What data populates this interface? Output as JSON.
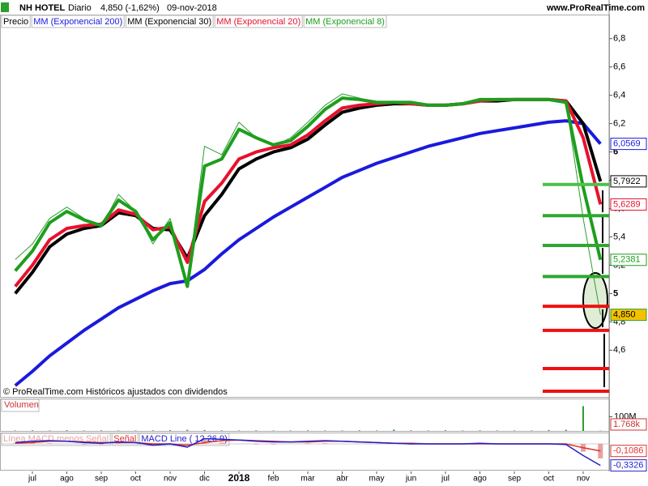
{
  "header": {
    "symbol": "NH HOTEL",
    "period": "Diario",
    "price": "4,850 (-1,62%)",
    "date": "09-nov-2018",
    "site": "www.ProRealTime.com",
    "note": "© ProRealTime.com Históricos ajustados con dividendos"
  },
  "chart_data": [
    {
      "type": "line",
      "categories": [
        null,
        "jul",
        null,
        "ago",
        null,
        "sep",
        null,
        "oct",
        null,
        "nov",
        null,
        "dic",
        null,
        "2018",
        null,
        "feb",
        null,
        "mar",
        null,
        "abr",
        null,
        "may",
        null,
        "jun",
        null,
        "jul",
        null,
        "ago",
        null,
        "sep",
        null,
        "oct",
        null,
        "nov",
        null
      ],
      "ylim": [
        4.27,
        6.97
      ],
      "yticks": [
        {
          "value": 4.6,
          "label": "4,6"
        },
        {
          "value": 4.8,
          "label": "4,8"
        },
        5,
        {
          "value": 5.2,
          "label": "5,2"
        },
        {
          "value": 5.4,
          "label": "5,4"
        },
        {
          "value": 5.6,
          "label": "5,6"
        },
        {
          "value": 5.8,
          "label": "5,8"
        },
        6,
        {
          "value": 6.2,
          "label": "6,2"
        },
        {
          "value": 6.4,
          "label": "6,4"
        },
        {
          "value": 6.6,
          "label": "6,6"
        },
        {
          "value": 6.8,
          "label": "6,8"
        }
      ],
      "series": [
        {
          "name": "Precio",
          "color": "#2e9e2e",
          "width": 1,
          "values": [
            5.24,
            5.35,
            5.53,
            5.61,
            5.53,
            5.47,
            5.7,
            5.58,
            5.35,
            5.53,
            5.07,
            6.04,
            5.98,
            6.21,
            6.1,
            6.04,
            6.1,
            6.21,
            6.33,
            6.41,
            6.38,
            6.35,
            6.35,
            6.35,
            6.33,
            6.33,
            6.34,
            6.37,
            6.37,
            6.37,
            6.37,
            6.37,
            6.35,
            5.53,
            4.85
          ],
          "value_labels": [
            null,
            null,
            null,
            null,
            null,
            null,
            null,
            null,
            null,
            null,
            null,
            null,
            null,
            null,
            null,
            null,
            null,
            null,
            null,
            null,
            null,
            null,
            null,
            null,
            null,
            null,
            null,
            null,
            null,
            null,
            null,
            null,
            null,
            null,
            "4,850"
          ]
        },
        {
          "name": "MM (Exponencial 200)",
          "color": "#1a1adc",
          "width": 4,
          "values": [
            4.35,
            4.45,
            4.56,
            4.65,
            4.74,
            4.82,
            4.9,
            4.96,
            5.02,
            5.07,
            5.09,
            5.17,
            5.28,
            5.38,
            5.46,
            5.54,
            5.61,
            5.68,
            5.75,
            5.82,
            5.87,
            5.92,
            5.96,
            6.0,
            6.04,
            6.07,
            6.1,
            6.13,
            6.15,
            6.17,
            6.19,
            6.21,
            6.22,
            6.2,
            6.0569
          ],
          "value_labels": [
            null,
            null,
            null,
            null,
            null,
            null,
            null,
            null,
            null,
            null,
            null,
            null,
            null,
            null,
            null,
            null,
            null,
            null,
            null,
            null,
            null,
            null,
            null,
            null,
            null,
            null,
            null,
            null,
            null,
            null,
            null,
            null,
            null,
            null,
            "6,0569"
          ]
        },
        {
          "name": "MM (Exponencial 30)",
          "color": "#000000",
          "width": 4,
          "values": [
            5.0,
            5.15,
            5.33,
            5.42,
            5.46,
            5.48,
            5.57,
            5.55,
            5.46,
            5.45,
            5.25,
            5.55,
            5.7,
            5.88,
            5.95,
            6.0,
            6.03,
            6.09,
            6.19,
            6.28,
            6.31,
            6.33,
            6.34,
            6.34,
            6.33,
            6.33,
            6.34,
            6.36,
            6.36,
            6.37,
            6.37,
            6.37,
            6.36,
            6.2,
            5.7922
          ],
          "value_labels": [
            null,
            null,
            null,
            null,
            null,
            null,
            null,
            null,
            null,
            null,
            null,
            null,
            null,
            null,
            null,
            null,
            null,
            null,
            null,
            null,
            null,
            null,
            null,
            null,
            null,
            null,
            null,
            null,
            null,
            null,
            null,
            null,
            null,
            null,
            "5,7922"
          ]
        },
        {
          "name": "MM (Exponencial 20)",
          "color": "#e8112d",
          "width": 4,
          "values": [
            5.05,
            5.2,
            5.38,
            5.46,
            5.48,
            5.49,
            5.59,
            5.56,
            5.45,
            5.47,
            5.22,
            5.65,
            5.78,
            5.95,
            6.0,
            6.03,
            6.05,
            6.12,
            6.22,
            6.31,
            6.33,
            6.34,
            6.35,
            6.34,
            6.33,
            6.33,
            6.34,
            6.36,
            6.37,
            6.37,
            6.37,
            6.37,
            6.36,
            6.1,
            5.6289
          ],
          "value_labels": [
            null,
            null,
            null,
            null,
            null,
            null,
            null,
            null,
            null,
            null,
            null,
            null,
            null,
            null,
            null,
            null,
            null,
            null,
            null,
            null,
            null,
            null,
            null,
            null,
            null,
            null,
            null,
            null,
            null,
            null,
            null,
            null,
            null,
            null,
            "5,6289"
          ]
        },
        {
          "name": "MM (Exponencial 8)",
          "color": "#1e9e1e",
          "width": 4,
          "values": [
            5.16,
            5.3,
            5.5,
            5.58,
            5.52,
            5.48,
            5.66,
            5.58,
            5.38,
            5.5,
            5.05,
            5.9,
            5.95,
            6.16,
            6.1,
            6.05,
            6.08,
            6.18,
            6.3,
            6.38,
            6.37,
            6.35,
            6.35,
            6.35,
            6.33,
            6.33,
            6.34,
            6.37,
            6.37,
            6.37,
            6.37,
            6.37,
            6.35,
            5.75,
            5.2381
          ],
          "value_labels": [
            null,
            null,
            null,
            null,
            null,
            null,
            null,
            null,
            null,
            null,
            null,
            null,
            null,
            null,
            null,
            null,
            null,
            null,
            null,
            null,
            null,
            null,
            null,
            null,
            null,
            null,
            null,
            null,
            null,
            null,
            null,
            null,
            null,
            null,
            "5,2381"
          ]
        }
      ],
      "levels": [
        {
          "value": 5.77,
          "color": "#4cc04c"
        },
        {
          "value": 5.55,
          "color": "#2ea82e"
        },
        {
          "value": 5.34,
          "color": "#2ea82e"
        },
        {
          "value": 5.12,
          "color": "#2ea82e"
        },
        {
          "value": 4.91,
          "color": "#ee1111"
        },
        {
          "value": 4.74,
          "color": "#ee1111"
        },
        {
          "value": 4.47,
          "color": "#ee1111"
        },
        {
          "value": 4.31,
          "color": "#ee1111"
        }
      ]
    },
    {
      "type": "bar",
      "title": "Volumen",
      "color": "#2e9e2e",
      "ylim": [
        0,
        200
      ],
      "yticks": [
        {
          "value": 100,
          "label": "100M"
        }
      ],
      "values": [
        3,
        4,
        3,
        5,
        3,
        4,
        3,
        3,
        4,
        5,
        8,
        6,
        4,
        3,
        4,
        3,
        3,
        4,
        3,
        3,
        4,
        3,
        10,
        4,
        3,
        5,
        3,
        4,
        3,
        3,
        3,
        6,
        8,
        175,
        1.768
      ],
      "value_labels": [
        null,
        null,
        null,
        null,
        null,
        null,
        null,
        null,
        null,
        null,
        null,
        null,
        null,
        null,
        null,
        null,
        null,
        null,
        null,
        null,
        null,
        null,
        null,
        null,
        null,
        null,
        null,
        null,
        null,
        null,
        null,
        null,
        null,
        null,
        "1.768k"
      ]
    },
    {
      "type": "line",
      "ylim": [
        -0.4,
        0.15
      ],
      "series": [
        {
          "name": "Línea MACD menos Señal",
          "color": "#e8a0a0",
          "kind": "bar",
          "values": [
            0.01,
            0.02,
            0.01,
            0,
            -0.01,
            -0.01,
            0.01,
            0,
            -0.02,
            0,
            -0.03,
            0.06,
            0.02,
            0,
            -0.01,
            -0.01,
            0,
            0.01,
            0.01,
            0,
            0,
            0,
            0,
            -0.01,
            0,
            0,
            0,
            0.01,
            0,
            0,
            0,
            0,
            -0.01,
            -0.12,
            -0.224
          ]
        },
        {
          "name": "Señal",
          "color": "#e03030",
          "values": [
            0.01,
            0.02,
            0.04,
            0.04,
            0.03,
            0.02,
            0.02,
            0.02,
            0.0,
            0.0,
            -0.02,
            0.02,
            0.05,
            0.06,
            0.05,
            0.04,
            0.03,
            0.03,
            0.04,
            0.04,
            0.03,
            0.02,
            0.01,
            0.01,
            0.0,
            0.0,
            0.0,
            0.0,
            0.0,
            0.0,
            0.0,
            0.0,
            0.0,
            -0.06,
            -0.1086
          ],
          "value_labels": [
            null,
            null,
            null,
            null,
            null,
            null,
            null,
            null,
            null,
            null,
            null,
            null,
            null,
            null,
            null,
            null,
            null,
            null,
            null,
            null,
            null,
            null,
            null,
            null,
            null,
            null,
            null,
            null,
            null,
            null,
            null,
            null,
            null,
            null,
            "-0,1086"
          ]
        },
        {
          "name": "MACD Line ( 12 26 9)",
          "color": "#2020cc",
          "values": [
            0.02,
            0.04,
            0.05,
            0.04,
            0.02,
            0.01,
            0.03,
            0.02,
            -0.02,
            0.0,
            -0.05,
            0.08,
            0.07,
            0.06,
            0.04,
            0.03,
            0.03,
            0.04,
            0.05,
            0.04,
            0.03,
            0.02,
            0.01,
            0.0,
            0.0,
            0.0,
            0.0,
            0.01,
            0.0,
            0.0,
            0.0,
            0.0,
            -0.01,
            -0.18,
            -0.3326
          ],
          "value_labels": [
            null,
            null,
            null,
            null,
            null,
            null,
            null,
            null,
            null,
            null,
            null,
            null,
            null,
            null,
            null,
            null,
            null,
            null,
            null,
            null,
            null,
            null,
            null,
            null,
            null,
            null,
            null,
            null,
            null,
            null,
            null,
            null,
            null,
            null,
            "-0,3326"
          ]
        }
      ]
    }
  ]
}
